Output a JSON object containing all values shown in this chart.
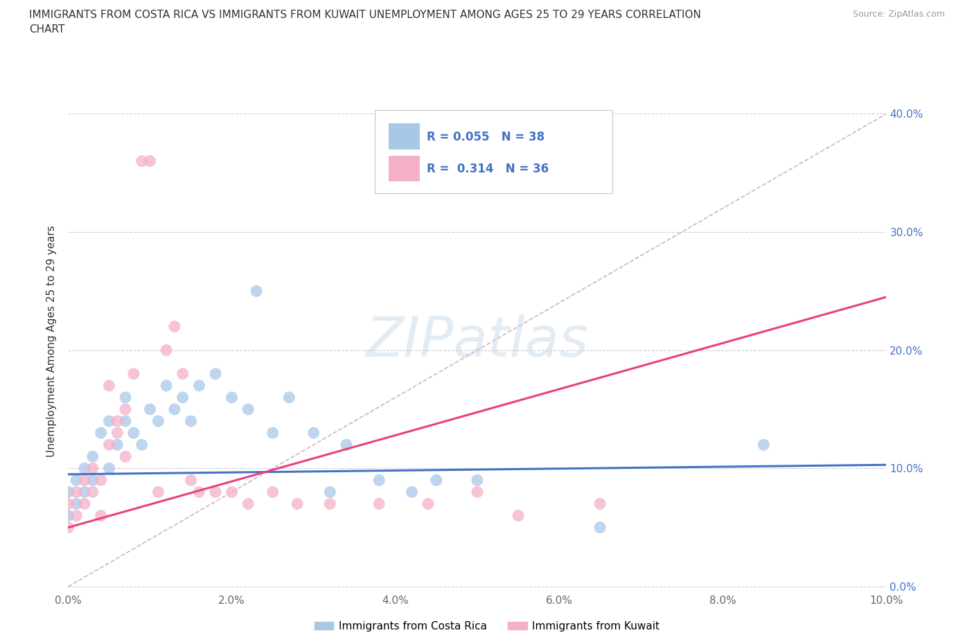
{
  "title_line1": "IMMIGRANTS FROM COSTA RICA VS IMMIGRANTS FROM KUWAIT UNEMPLOYMENT AMONG AGES 25 TO 29 YEARS CORRELATION",
  "title_line2": "CHART",
  "source": "Source: ZipAtlas.com",
  "ylabel": "Unemployment Among Ages 25 to 29 years",
  "xlim": [
    0.0,
    0.1
  ],
  "ylim": [
    -0.005,
    0.42
  ],
  "xticks": [
    0.0,
    0.02,
    0.04,
    0.06,
    0.08,
    0.1
  ],
  "yticks": [
    0.0,
    0.1,
    0.2,
    0.3,
    0.4
  ],
  "xtick_labels": [
    "0.0%",
    "2.0%",
    "4.0%",
    "6.0%",
    "8.0%",
    "10.0%"
  ],
  "ytick_labels": [
    "0.0%",
    "10.0%",
    "20.0%",
    "30.0%",
    "40.0%"
  ],
  "costa_rica_color": "#a8c8e8",
  "kuwait_color": "#f4b0c8",
  "costa_rica_line_color": "#4472c4",
  "kuwait_line_color": "#e84080",
  "trendline_color": "#c8a0a0",
  "R_costa_rica": 0.055,
  "N_costa_rica": 38,
  "R_kuwait": 0.314,
  "N_kuwait": 36,
  "legend_label_1": "Immigrants from Costa Rica",
  "legend_label_2": "Immigrants from Kuwait",
  "watermark": "ZIPatlas",
  "costa_rica_x": [
    0.0,
    0.0,
    0.001,
    0.001,
    0.002,
    0.002,
    0.003,
    0.003,
    0.004,
    0.005,
    0.005,
    0.006,
    0.007,
    0.007,
    0.008,
    0.009,
    0.01,
    0.011,
    0.012,
    0.013,
    0.014,
    0.015,
    0.016,
    0.018,
    0.02,
    0.022,
    0.023,
    0.025,
    0.027,
    0.03,
    0.032,
    0.034,
    0.038,
    0.042,
    0.045,
    0.05,
    0.065,
    0.085
  ],
  "costa_rica_y": [
    0.06,
    0.08,
    0.07,
    0.09,
    0.08,
    0.1,
    0.11,
    0.09,
    0.13,
    0.1,
    0.14,
    0.12,
    0.14,
    0.16,
    0.13,
    0.12,
    0.15,
    0.14,
    0.17,
    0.15,
    0.16,
    0.14,
    0.17,
    0.18,
    0.16,
    0.15,
    0.25,
    0.13,
    0.16,
    0.13,
    0.08,
    0.12,
    0.09,
    0.08,
    0.09,
    0.09,
    0.05,
    0.12
  ],
  "kuwait_x": [
    0.0,
    0.0,
    0.001,
    0.001,
    0.002,
    0.002,
    0.003,
    0.003,
    0.004,
    0.004,
    0.005,
    0.005,
    0.006,
    0.006,
    0.007,
    0.007,
    0.008,
    0.009,
    0.01,
    0.011,
    0.012,
    0.013,
    0.014,
    0.015,
    0.016,
    0.018,
    0.02,
    0.022,
    0.025,
    0.028,
    0.032,
    0.038,
    0.044,
    0.05,
    0.055,
    0.065
  ],
  "kuwait_y": [
    0.05,
    0.07,
    0.06,
    0.08,
    0.07,
    0.09,
    0.1,
    0.08,
    0.06,
    0.09,
    0.17,
    0.12,
    0.14,
    0.13,
    0.15,
    0.11,
    0.18,
    0.36,
    0.36,
    0.08,
    0.2,
    0.22,
    0.18,
    0.09,
    0.08,
    0.08,
    0.08,
    0.07,
    0.08,
    0.07,
    0.07,
    0.07,
    0.07,
    0.08,
    0.06,
    0.07
  ]
}
